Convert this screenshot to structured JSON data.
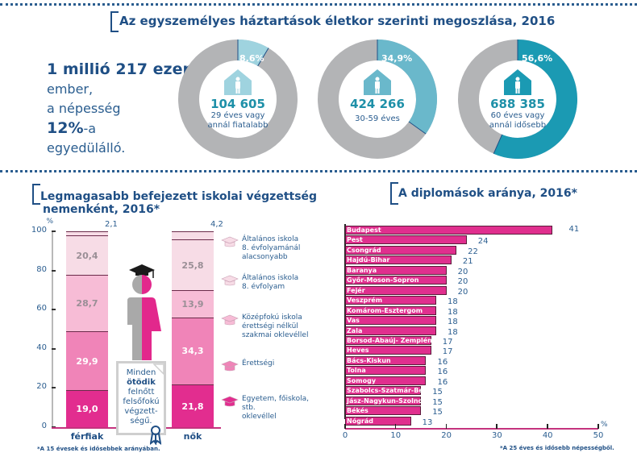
{
  "section1": {
    "title": "Az egyszemélyes háztartások életkor szerinti megoszlása, 2016",
    "intro": {
      "line1": "1 millió 217 ezer",
      "line2": "ember,",
      "line3": "a népesség",
      "line4_bold": "12%",
      "line4_rest": "-a",
      "line5": "egyedülálló."
    }
  },
  "section2": {
    "title_line1": "Legmagasabb befejezett iskolai végzettség",
    "title_line2": "nemenként, 2016*",
    "footnote": "*A 15 évesek és idősebbek arányában.",
    "note": {
      "line1": "Minden",
      "line2_bold": "ötödik",
      "line3": "felnőtt",
      "line4": "felsőfokú",
      "line5": "végzett-",
      "line6": "ségű."
    }
  },
  "section3": {
    "title": "A diplomások aránya, 2016*",
    "footnote": "*A 25 éves és idősebb népességből."
  },
  "colors": {
    "dark_blue": "#1f4f85",
    "teal_light": "#9fd3df",
    "teal_mid": "#6ab8cb",
    "teal_dark": "#1b9ab3",
    "donut_gray": "#b3b4b6",
    "pink_dark": "#e22d8f",
    "pink_mid": "#f084b8",
    "pink_light": "#f7bcd6",
    "pink_pale": "#f7dce6"
  },
  "chart_data": [
    {
      "type": "pie",
      "title": "Az egyszemélyes háztartások életkor szerinti megoszlása, 2016",
      "slices": [
        {
          "label": "29 éves vagy annál fiatalabb",
          "count": "104 605",
          "percent": 8.6,
          "percent_label": "8,6%"
        },
        {
          "label": "30-59 éves",
          "count": "424 266",
          "percent": 34.9,
          "percent_label": "34,9%"
        },
        {
          "label": "60 éves vagy annál idősebb",
          "count": "688 385",
          "percent": 56.6,
          "percent_label": "56,6%"
        }
      ],
      "donuts": [
        {
          "count": "104 605",
          "sub1": "29 éves vagy",
          "sub2": "annál fiatalabb",
          "percent": 8.6,
          "percent_label": "8,6%",
          "color": "#9fd3df"
        },
        {
          "count": "424 266",
          "sub1": "30-59 éves",
          "sub2": "",
          "percent": 34.9,
          "percent_label": "34,9%",
          "color": "#6ab8cb"
        },
        {
          "count": "688 385",
          "sub1": "60 éves vagy",
          "sub2": "annál idősebb",
          "percent": 56.6,
          "percent_label": "56,6%",
          "color": "#1b9ab3"
        }
      ]
    },
    {
      "type": "bar",
      "stacked": true,
      "title": "Legmagasabb befejezett iskolai végzettség nemenként, 2016*",
      "ylabel": "%",
      "ylim": [
        0,
        100
      ],
      "yticks": [
        "0",
        "20",
        "40",
        "60",
        "80",
        "100"
      ],
      "categories": [
        "férfiak",
        "nők"
      ],
      "series": [
        {
          "name": "Egyetem, főiskola, stb. oklevéllel",
          "values": [
            19.0,
            21.8
          ],
          "labels": [
            "19,0",
            "21,8"
          ],
          "color": "#e22d8f",
          "text_color": "#ffffff"
        },
        {
          "name": "Érettségi",
          "values": [
            29.9,
            34.3
          ],
          "labels": [
            "29,9",
            "34,3"
          ],
          "color": "#f084b8",
          "text_color": "#ffffff"
        },
        {
          "name": "Középfokú iskola érettségi nélkül szakmai oklevéllel",
          "values": [
            28.7,
            13.9
          ],
          "labels": [
            "28,7",
            "13,9"
          ],
          "color": "#f7bcd6",
          "text_color": "#9a8f96"
        },
        {
          "name": "Általános iskola 8. évfolyam",
          "values": [
            20.4,
            25.8
          ],
          "labels": [
            "20,4",
            "25,8"
          ],
          "color": "#f7dce6",
          "text_color": "#9a8f96"
        },
        {
          "name": "Általános iskola 8. évfolyamánál alacsonyabb",
          "values": [
            2.1,
            4.2
          ],
          "labels": [
            "2,1",
            "4,2"
          ],
          "color": "#f7dce6",
          "text_color": "#2a5d8f"
        }
      ],
      "legend": [
        {
          "lines": [
            "Általános iskola",
            "8. évfolyamánál",
            "alacsonyabb"
          ],
          "color": "#f7dce6"
        },
        {
          "lines": [
            "Általános iskola",
            "8. évfolyam"
          ],
          "color": "#f7dce6"
        },
        {
          "lines": [
            "Középfokú iskola",
            "érettségi nélkül",
            "szakmai oklevéllel"
          ],
          "color": "#f7bcd6"
        },
        {
          "lines": [
            "Érettségi"
          ],
          "color": "#f084b8"
        },
        {
          "lines": [
            "Egyetem, főiskola, stb.",
            "oklevéllel"
          ],
          "color": "#e22d8f"
        }
      ],
      "legend_position": "right"
    },
    {
      "type": "bar",
      "orientation": "horizontal",
      "title": "A diplomások aránya, 2016*",
      "xlabel": "%",
      "xlim": [
        0,
        50
      ],
      "xticks": [
        "0",
        "10",
        "20",
        "30",
        "40",
        "50"
      ],
      "categories": [
        "Budapest",
        "Pest",
        "Csongrád",
        "Hajdú-Bihar",
        "Baranya",
        "Győr-Moson-Sopron",
        "Fejér",
        "Veszprém",
        "Komárom-Esztergom",
        "Vas",
        "Zala",
        "Borsod-Abaúj- Zemplén",
        "Heves",
        "Bács-Kiskun",
        "Tolna",
        "Somogy",
        "Szabolcs-Szatmár-Bereg",
        "Jász-Nagykun-Szolnok",
        "Békés",
        "Nógrád"
      ],
      "values": [
        41,
        24,
        22,
        21,
        20,
        20,
        20,
        18,
        18,
        18,
        18,
        17,
        17,
        16,
        16,
        16,
        15,
        15,
        15,
        13
      ],
      "color": "#e02f8e"
    }
  ]
}
